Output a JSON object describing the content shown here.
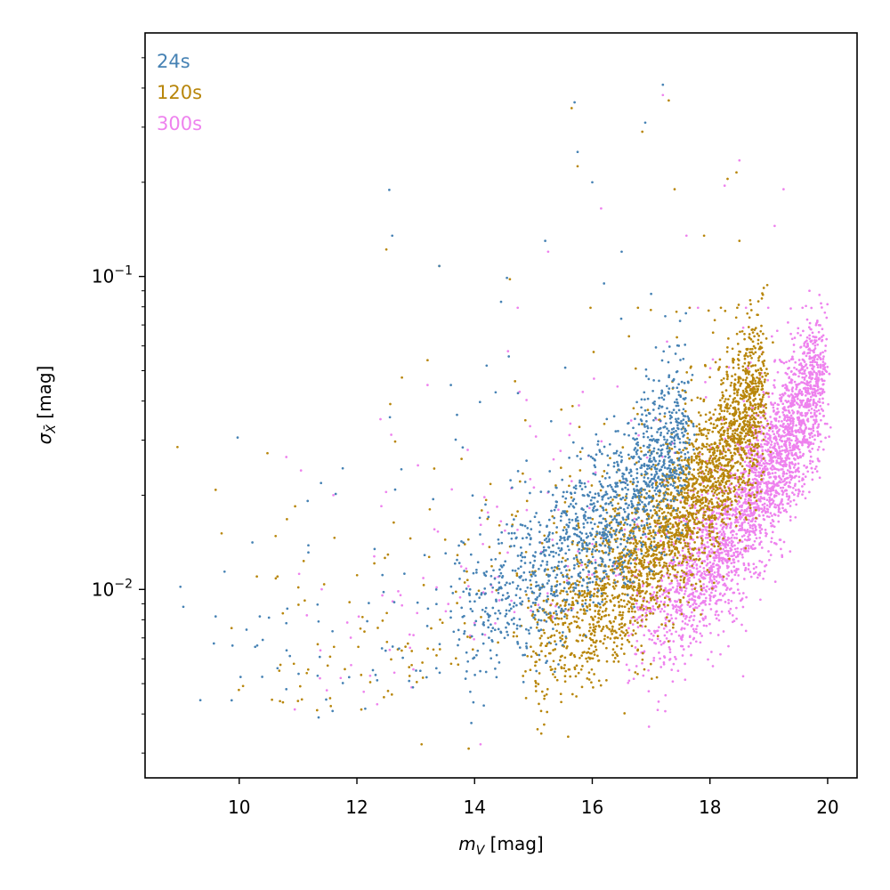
{
  "chart_data": {
    "type": "scatter",
    "xlabel": "m_V [mag]",
    "ylabel": "σ_X̄ [mag]",
    "xlabel_main": "m",
    "xlabel_sub": "V",
    "xlabel_unit": " [mag]",
    "ylabel_main": "σ",
    "ylabel_sub": "X̄",
    "ylabel_unit": " [mag]",
    "xlim": [
      8.4,
      20.5
    ],
    "ylim": [
      0.0025,
      0.6
    ],
    "yscale": "log",
    "x_ticks": [
      10,
      12,
      14,
      16,
      18,
      20
    ],
    "x_tick_labels": [
      "10",
      "12",
      "14",
      "16",
      "18",
      "20"
    ],
    "y_ticks": [
      0.01,
      0.1
    ],
    "y_tick_labels": [
      {
        "base": "10",
        "exp": "−2"
      },
      {
        "base": "10",
        "exp": "−1"
      }
    ],
    "grid": false,
    "legend_placement": "top-left",
    "series": [
      {
        "name": "24s",
        "color": "#4682b4",
        "trend": {
          "x0": 13.5,
          "x1": 17.6,
          "logy0": -2.1,
          "logy1": -1.45,
          "spread": 0.13,
          "count": 1300
        },
        "scatter_region": {
          "x0": 9.0,
          "x1": 17.5,
          "logy_min": -2.4,
          "logy_max": -1.0,
          "count": 200
        },
        "points": [
          {
            "x": 9.0,
            "y": 0.0102
          },
          {
            "x": 9.05,
            "y": 0.0088
          },
          {
            "x": 9.6,
            "y": 0.0082
          },
          {
            "x": 9.75,
            "y": 0.0114
          },
          {
            "x": 10.35,
            "y": 0.0082
          },
          {
            "x": 10.4,
            "y": 0.0069
          },
          {
            "x": 10.65,
            "y": 0.0056
          },
          {
            "x": 10.8,
            "y": 0.0048
          },
          {
            "x": 11.35,
            "y": 0.0039
          },
          {
            "x": 12.55,
            "y": 0.189
          },
          {
            "x": 12.6,
            "y": 0.135
          },
          {
            "x": 13.4,
            "y": 0.108
          },
          {
            "x": 14.45,
            "y": 0.083
          },
          {
            "x": 14.55,
            "y": 0.099
          },
          {
            "x": 15.7,
            "y": 0.36
          },
          {
            "x": 15.75,
            "y": 0.25
          },
          {
            "x": 16.0,
            "y": 0.2
          },
          {
            "x": 16.9,
            "y": 0.31
          },
          {
            "x": 17.2,
            "y": 0.41
          },
          {
            "x": 16.5,
            "y": 0.12
          },
          {
            "x": 17.0,
            "y": 0.088
          },
          {
            "x": 16.2,
            "y": 0.095
          },
          {
            "x": 15.2,
            "y": 0.13
          }
        ]
      },
      {
        "name": "120s",
        "color": "#b8860b",
        "trend": {
          "x0": 14.8,
          "x1": 18.9,
          "logy0": -2.2,
          "logy1": -1.35,
          "spread": 0.13,
          "count": 2600
        },
        "scatter_region": {
          "x0": 9.5,
          "x1": 18.8,
          "logy_min": -2.5,
          "logy_max": -1.1,
          "count": 300
        },
        "points": [
          {
            "x": 8.95,
            "y": 0.0285
          },
          {
            "x": 9.6,
            "y": 0.0208
          },
          {
            "x": 9.7,
            "y": 0.0151
          },
          {
            "x": 10.3,
            "y": 0.011
          },
          {
            "x": 10.65,
            "y": 0.011
          },
          {
            "x": 12.5,
            "y": 0.122
          },
          {
            "x": 13.2,
            "y": 0.054
          },
          {
            "x": 13.4,
            "y": 0.108
          },
          {
            "x": 14.6,
            "y": 0.098
          },
          {
            "x": 15.65,
            "y": 0.345
          },
          {
            "x": 15.75,
            "y": 0.225
          },
          {
            "x": 16.85,
            "y": 0.29
          },
          {
            "x": 17.3,
            "y": 0.365
          },
          {
            "x": 17.4,
            "y": 0.19
          },
          {
            "x": 17.9,
            "y": 0.135
          },
          {
            "x": 18.3,
            "y": 0.205
          },
          {
            "x": 18.45,
            "y": 0.215
          },
          {
            "x": 18.5,
            "y": 0.13
          },
          {
            "x": 13.1,
            "y": 0.0032
          },
          {
            "x": 13.9,
            "y": 0.0031
          }
        ]
      },
      {
        "name": "300s",
        "color": "#ee82ee",
        "trend": {
          "x0": 16.5,
          "x1": 19.9,
          "logy0": -2.15,
          "logy1": -1.3,
          "spread": 0.12,
          "count": 2600
        },
        "scatter_region": {
          "x0": 10.7,
          "x1": 19.6,
          "logy_min": -2.45,
          "logy_max": -1.1,
          "count": 250
        },
        "points": [
          {
            "x": 10.8,
            "y": 0.0265
          },
          {
            "x": 11.05,
            "y": 0.024
          },
          {
            "x": 11.6,
            "y": 0.02
          },
          {
            "x": 12.4,
            "y": 0.035
          },
          {
            "x": 17.2,
            "y": 0.38
          },
          {
            "x": 18.5,
            "y": 0.235
          },
          {
            "x": 18.25,
            "y": 0.195
          },
          {
            "x": 19.25,
            "y": 0.19
          },
          {
            "x": 19.1,
            "y": 0.145
          },
          {
            "x": 17.6,
            "y": 0.135
          },
          {
            "x": 16.15,
            "y": 0.165
          },
          {
            "x": 15.25,
            "y": 0.12
          },
          {
            "x": 14.1,
            "y": 0.0032
          },
          {
            "x": 13.2,
            "y": 0.045
          }
        ]
      }
    ]
  }
}
